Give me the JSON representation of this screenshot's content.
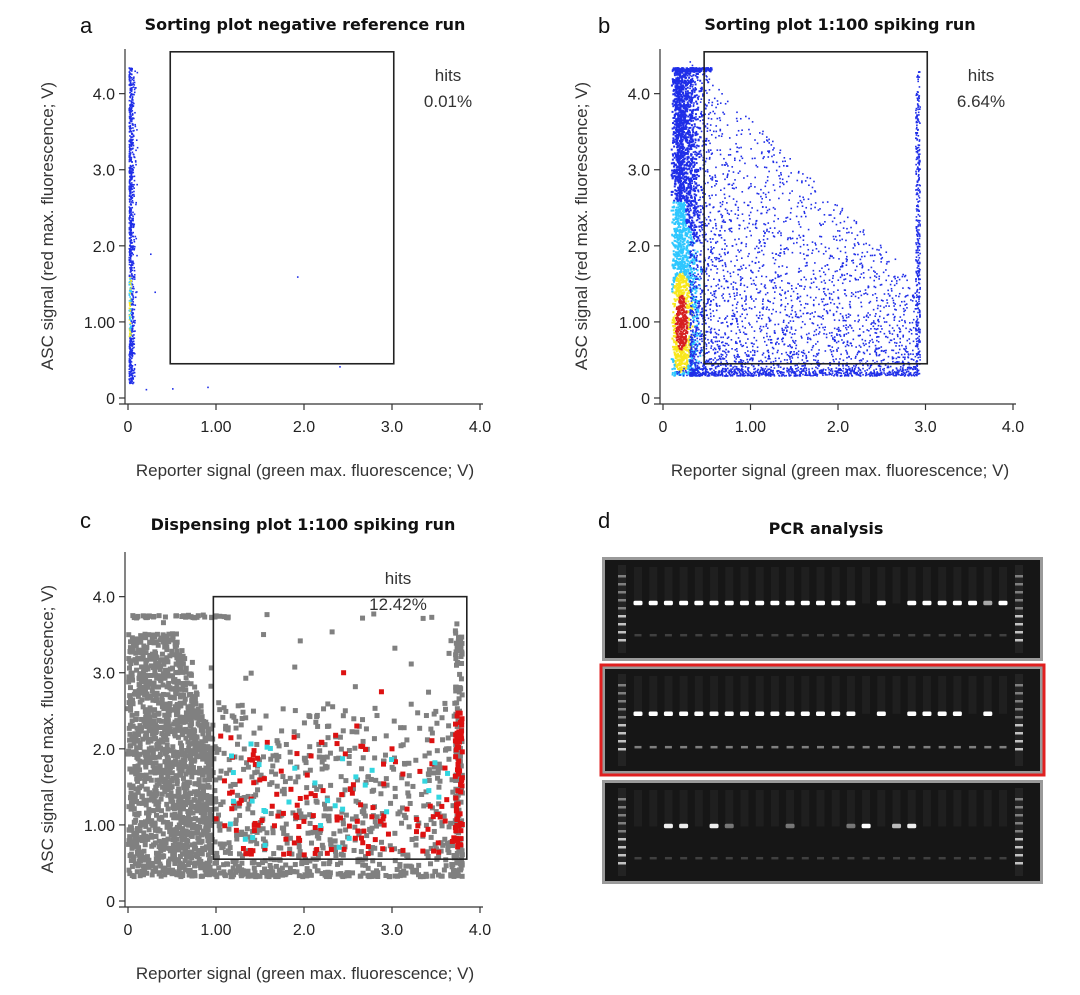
{
  "colors": {
    "density_low": "#1f2ee8",
    "density_mid": "#2ec7ff",
    "density_high": "#f8e71c",
    "density_peak": "#d62020",
    "dispense_gray": "#808080",
    "dispense_red": "#dd1111",
    "dispense_cyan": "#33d6e0",
    "gel_highlight": "#e02020"
  },
  "chart_data": [
    {
      "panel": "a",
      "type": "scatter",
      "title": "Sorting plot negative reference run",
      "xlabel": "Reporter signal (green max. fluorescence; V)",
      "ylabel": "ASC signal (red max. fluorescence; V)",
      "xlim": [
        0,
        4.0
      ],
      "ylim": [
        0,
        4.6
      ],
      "xticks": [
        0,
        1.0,
        2.0,
        3.0,
        4.0
      ],
      "xtick_labels": [
        "0",
        "1.00",
        "2.0",
        "3.0",
        "4.0"
      ],
      "yticks": [
        0,
        1.0,
        2.0,
        3.0,
        4.0
      ],
      "ytick_labels": [
        "0",
        "1.00",
        "2.0",
        "3.0",
        "4.0"
      ],
      "gate": {
        "x0": 0.48,
        "x1": 3.02,
        "y0": 0.45,
        "y1": 4.55
      },
      "hits_label": "hits",
      "hits_value": "0.01%",
      "hits_percent": 0.01
    },
    {
      "panel": "b",
      "type": "scatter",
      "title": "Sorting plot 1:100 spiking run",
      "xlabel": "Reporter signal (green max. fluorescence; V)",
      "ylabel": "ASC signal (red max. fluorescence; V)",
      "xlim": [
        0,
        4.0
      ],
      "ylim": [
        0,
        4.6
      ],
      "xticks": [
        0,
        1.0,
        2.0,
        3.0,
        4.0
      ],
      "xtick_labels": [
        "0",
        "1.00",
        "2.0",
        "3.0",
        "4.0"
      ],
      "yticks": [
        0,
        1.0,
        2.0,
        3.0,
        4.0
      ],
      "ytick_labels": [
        "0",
        "1.00",
        "2.0",
        "3.0",
        "4.0"
      ],
      "gate": {
        "x0": 0.47,
        "x1": 3.02,
        "y0": 0.45,
        "y1": 4.55
      },
      "hits_label": "hits",
      "hits_value": "6.64%",
      "hits_percent": 6.64
    },
    {
      "panel": "c",
      "type": "scatter",
      "title": "Dispensing plot 1:100 spiking run",
      "xlabel": "Reporter signal (green max. fluorescence; V)",
      "ylabel": "ASC signal (red max. fluorescence; V)",
      "xlim": [
        0,
        4.0
      ],
      "ylim": [
        0,
        4.6
      ],
      "xticks": [
        0,
        1.0,
        2.0,
        3.0,
        4.0
      ],
      "xtick_labels": [
        "0",
        "1.00",
        "2.0",
        "3.0",
        "4.0"
      ],
      "yticks": [
        0,
        1.0,
        2.0,
        3.0,
        4.0
      ],
      "ytick_labels": [
        "0",
        "1.00",
        "2.0",
        "3.0",
        "4.0"
      ],
      "gate": {
        "x0": 0.97,
        "x1": 3.85,
        "y0": 0.55,
        "y1": 4.0
      },
      "hits_label": "hits",
      "hits_value": "12.42%",
      "hits_percent": 12.42
    }
  ],
  "pcr": {
    "panel": "d",
    "title": "PCR analysis",
    "gels": [
      {
        "name": "gel-top",
        "highlighted": false,
        "lanes": [
          1,
          1,
          1,
          1,
          1,
          1,
          1,
          1,
          1,
          1,
          1,
          1,
          1,
          1,
          1,
          0,
          1,
          0,
          1,
          1,
          1,
          1,
          1,
          0.5,
          1
        ],
        "secondary": 0
      },
      {
        "name": "gel-middle",
        "highlighted": true,
        "lanes": [
          1,
          1,
          1,
          1,
          1,
          1,
          1,
          1,
          1,
          1,
          1,
          1,
          1,
          1,
          1,
          0,
          1,
          0,
          1,
          1,
          1,
          1,
          0,
          1,
          0
        ],
        "secondary": 1
      },
      {
        "name": "gel-bottom",
        "highlighted": false,
        "lanes": [
          0,
          0,
          0.9,
          0.9,
          0,
          0.9,
          0.2,
          0,
          0,
          0,
          0.2,
          0,
          0,
          0,
          0.2,
          1,
          0,
          0.6,
          0.9,
          0,
          0,
          0,
          0,
          0,
          0
        ],
        "secondary": 0
      }
    ]
  }
}
